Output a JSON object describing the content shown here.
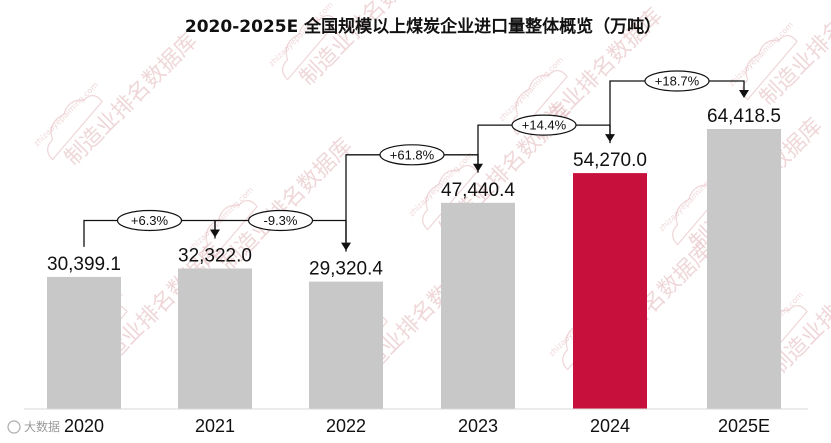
{
  "chart_data": {
    "type": "bar",
    "title": "2020-2025E 全国规模以上煤炭企业进口量整体概览（万吨）",
    "categories": [
      "2020",
      "2021",
      "2022",
      "2023",
      "2024",
      "2025E"
    ],
    "values": [
      30399.1,
      32322.0,
      29320.4,
      47440.4,
      54270.0,
      64418.5
    ],
    "value_labels": [
      "30,399.1",
      "32,322.0",
      "29,320.4",
      "47,440.4",
      "54,270.0",
      "64,418.5"
    ],
    "growth_annotations": [
      {
        "from": "2020",
        "to": "2021",
        "label": "+6.3%"
      },
      {
        "from": "2021",
        "to": "2022",
        "label": "-9.3%"
      },
      {
        "from": "2022",
        "to": "2023",
        "label": "+61.8%"
      },
      {
        "from": "2023",
        "to": "2024",
        "label": "+14.4%"
      },
      {
        "from": "2024",
        "to": "2025E",
        "label": "+18.7%"
      }
    ],
    "highlight_category": "2024",
    "colors": {
      "bar": "#c8c8c8",
      "highlight": "#c8103c"
    },
    "grid": false,
    "legend": "none"
  },
  "watermark": {
    "text": "制造业排名数据库",
    "url": "zhizaoyepaiming.com"
  },
  "corner_mark": "大数据"
}
